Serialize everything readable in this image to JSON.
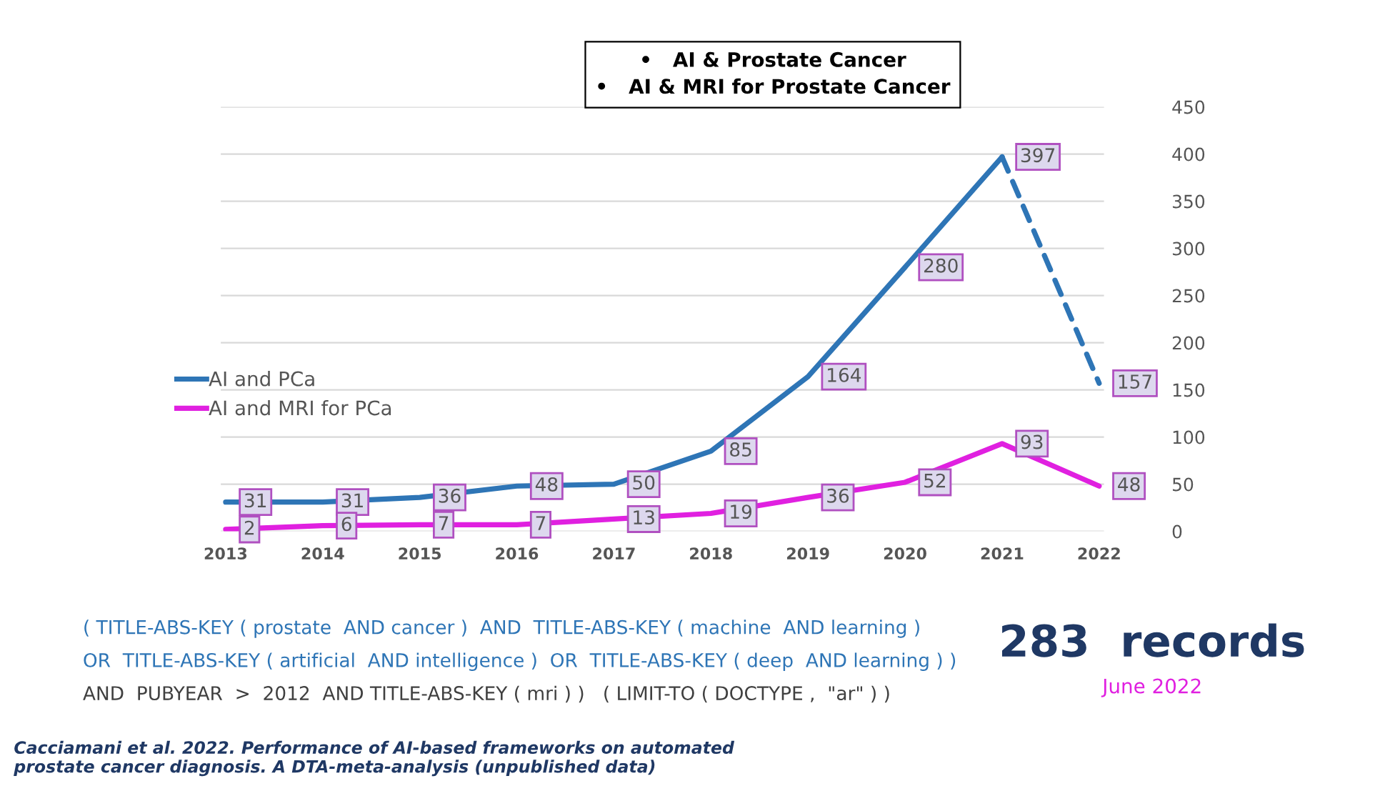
{
  "chart_data": {
    "type": "line",
    "categories": [
      "2013",
      "2014",
      "2015",
      "2016",
      "2017",
      "2018",
      "2019",
      "2020",
      "2021",
      "2022"
    ],
    "series": [
      {
        "name": "AI and PCa",
        "color": "#2e75b6",
        "line_style": "solid",
        "values": [
          31,
          31,
          36,
          48,
          50,
          85,
          164,
          280,
          397,
          null
        ],
        "value_labels": [
          "31",
          "31",
          "36",
          "48",
          "50",
          "85",
          "164",
          "280",
          "397",
          null
        ]
      },
      {
        "color": "#2e75b6",
        "line_style": "dashed",
        "values": [
          null,
          null,
          null,
          null,
          null,
          null,
          null,
          null,
          397,
          157
        ],
        "value_labels": [
          null,
          null,
          null,
          null,
          null,
          null,
          null,
          null,
          null,
          "157"
        ]
      },
      {
        "name": "AI and MRI for PCa",
        "color": "#e020e0",
        "line_style": "solid",
        "values": [
          2,
          6,
          7,
          7,
          13,
          19,
          36,
          52,
          93,
          48
        ],
        "value_labels": [
          "2",
          "6",
          "7",
          "7",
          "13",
          "19",
          "36",
          "52",
          "93",
          "48"
        ]
      }
    ],
    "ylim": [
      0,
      450
    ],
    "yticks": [
      0,
      50,
      100,
      150,
      200,
      250,
      300,
      350,
      400,
      450
    ],
    "grid": "y",
    "legend": "left",
    "marker": "none",
    "annotations": [
      "•   AI & Prostate Cancer",
      "•   AI & MRI for Prostate Cancer",
      "( TITLE-ABS-KEY ( prostate  AND cancer )  AND  TITLE-ABS-KEY ( machine  AND learning )",
      "OR  TITLE-ABS-KEY ( artificial  AND intelligence )  OR  TITLE-ABS-KEY ( deep  AND learning ) )",
      "AND  PUBYEAR  >  2012  AND TITLE-ABS-KEY ( mri ) )   ( LIMIT-TO ( DOCTYPE ,  \"ar\" ) )",
      "283  records",
      "June 2022",
      "Cacciamani et al. 2022. Performance of AI-based frameworks on automated\nprostate cancer diagnosis. A DTA-meta-analysis (unpublished data)"
    ]
  }
}
